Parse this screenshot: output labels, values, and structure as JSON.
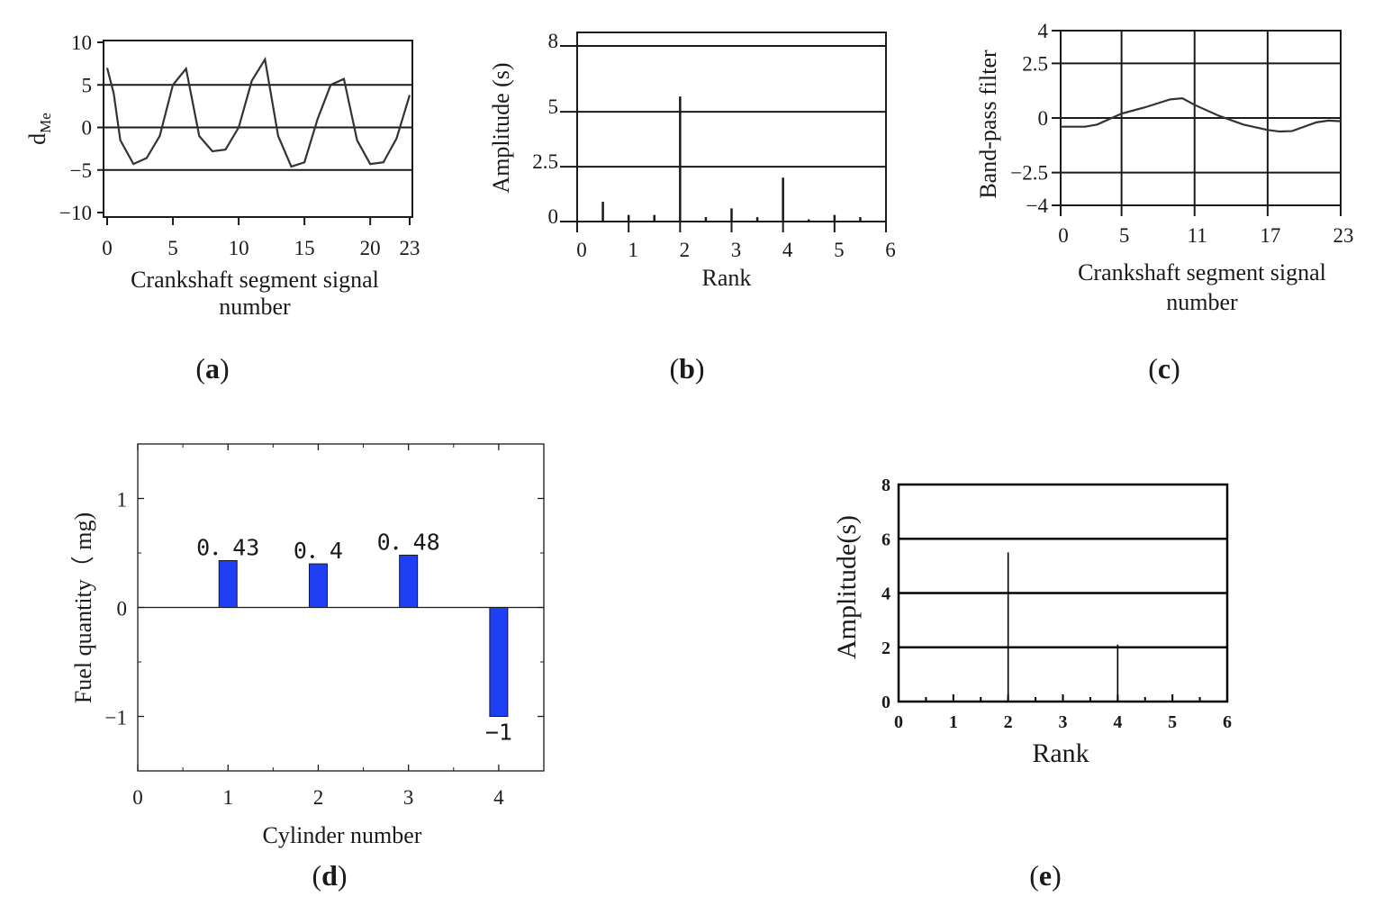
{
  "chart_data": [
    {
      "id": "a",
      "type": "line",
      "panel_label": "a",
      "title": "",
      "xlabel": "Crankshaft segment signal number",
      "ylabel": "d",
      "ylabel_sub": "Me",
      "xlim": [
        0,
        23
      ],
      "ylim": [
        -10,
        10
      ],
      "xticks": [
        0,
        5,
        10,
        15,
        20,
        23
      ],
      "yticks": [
        10,
        5,
        0,
        -5,
        -10
      ],
      "ytick_labels": [
        "10",
        "5",
        "0",
        "−5",
        "−10"
      ],
      "gridlines_y": [
        5,
        0,
        -5
      ],
      "x": [
        0,
        0.5,
        1,
        2,
        3,
        4,
        5,
        6,
        7,
        8,
        9,
        10,
        11,
        12,
        13,
        14,
        15,
        16,
        17,
        18,
        19,
        20,
        21,
        22,
        23
      ],
      "y": [
        7,
        4,
        -1.5,
        -4.3,
        -3.6,
        -1,
        5,
        6.9,
        -1,
        -2.8,
        -2.6,
        0,
        5.5,
        8,
        -1,
        -4.6,
        -4.1,
        1,
        5,
        5.7,
        -1.5,
        -4.3,
        -4.1,
        -1.3,
        3.8
      ]
    },
    {
      "id": "b",
      "type": "bar",
      "panel_label": "b",
      "title": "",
      "xlabel": "Rank",
      "ylabel": "Amplitude (s)",
      "xlim": [
        0,
        6
      ],
      "ylim": [
        0,
        8.3
      ],
      "xticks": [
        0,
        1,
        2,
        3,
        4,
        5,
        6
      ],
      "yticks": [
        8,
        5,
        2.5,
        0
      ],
      "ytick_labels": [
        "8",
        "5",
        "2.5",
        "0"
      ],
      "gridlines_y": [
        8,
        5,
        2.5
      ],
      "x": [
        0.5,
        1,
        1.5,
        2,
        2.5,
        3,
        3.5,
        4,
        4.5,
        5,
        5.5
      ],
      "values": [
        0.9,
        0.3,
        0.3,
        5.7,
        0.2,
        0.6,
        0.2,
        2.0,
        0.1,
        0.3,
        0.2
      ]
    },
    {
      "id": "c",
      "type": "line",
      "panel_label": "c",
      "title": "",
      "xlabel": "Crankshaft segment signal number",
      "ylabel": "Band-pass filter",
      "xlim": [
        0,
        23
      ],
      "ylim": [
        -4,
        4
      ],
      "xticks": [
        0,
        5,
        11,
        17,
        23
      ],
      "yticks": [
        4,
        2.5,
        0,
        -2.5,
        -4
      ],
      "ytick_labels": [
        "4",
        "2.5",
        "0",
        "−2.5",
        "−4"
      ],
      "gridlines_y": [
        2.5,
        0,
        -2.5
      ],
      "gridlines_x": [
        5,
        11,
        17
      ],
      "x": [
        0,
        2,
        3,
        5,
        7,
        9,
        10,
        11,
        13,
        15,
        17,
        18,
        19,
        21,
        22,
        23
      ],
      "y": [
        -0.4,
        -0.4,
        -0.3,
        0.2,
        0.5,
        0.85,
        0.9,
        0.6,
        0.1,
        -0.3,
        -0.55,
        -0.62,
        -0.6,
        -0.2,
        -0.12,
        -0.15
      ]
    },
    {
      "id": "d",
      "type": "bar",
      "panel_label": "d",
      "title": "",
      "xlabel": "Cylinder number",
      "ylabel": "Fuel quantity（ mg)",
      "xlim": [
        0,
        4.5
      ],
      "ylim": [
        -1.5,
        1.5
      ],
      "xticks": [
        0,
        1,
        2,
        3,
        4
      ],
      "yticks": [
        1,
        0,
        -1
      ],
      "ytick_labels": [
        "1",
        "0",
        "−1"
      ],
      "categories": [
        1,
        2,
        3,
        4
      ],
      "values": [
        0.43,
        0.4,
        0.48,
        -1
      ],
      "data_labels": [
        "0．43",
        "0．4",
        "0．48",
        "−1"
      ],
      "bar_color": "#1f3ff5"
    },
    {
      "id": "e",
      "type": "bar",
      "panel_label": "e",
      "title": "",
      "xlabel": "Rank",
      "ylabel": "Amplitude(s)",
      "xlim": [
        0,
        6
      ],
      "ylim": [
        0,
        8
      ],
      "xticks": [
        0,
        1,
        2,
        3,
        4,
        5,
        6
      ],
      "yticks": [
        8,
        6,
        4,
        2,
        0
      ],
      "ytick_labels": [
        "8",
        "6",
        "4",
        "2",
        "0"
      ],
      "gridlines_y": [
        6,
        4,
        2
      ],
      "x": [
        2,
        4
      ],
      "values": [
        5.5,
        2.1
      ]
    }
  ]
}
